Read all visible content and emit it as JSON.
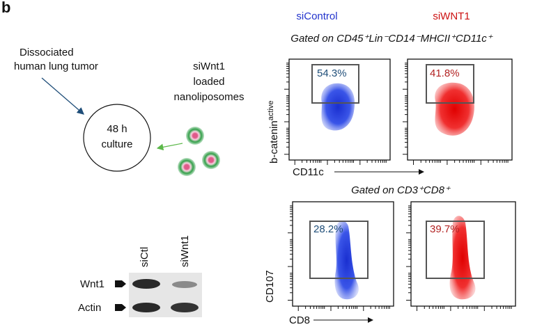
{
  "panel_label": "b",
  "schematic": {
    "source": [
      "Dissociated",
      "human lung tumor"
    ],
    "culture": [
      "48 h",
      "culture"
    ],
    "treatment": [
      "siWnt1",
      "loaded",
      "nanoliposomes"
    ]
  },
  "blot": {
    "lanes": [
      "siCtl",
      "siWnt1"
    ],
    "rows": [
      "Wnt1",
      "Actin"
    ]
  },
  "flow": {
    "conditions": [
      "siControl",
      "siWNT1"
    ],
    "top": {
      "gating": "Gated on CD45⁺Lin⁻CD14⁻MHCII⁺CD11c⁺",
      "y_label": "b-catenin",
      "y_label_sup": "active",
      "x_label": "CD11c",
      "percentages": [
        "54.3%",
        "41.8%"
      ]
    },
    "bottom": {
      "gating": "Gated on CD3⁺CD8⁺",
      "y_label": "CD107",
      "x_label": "CD8",
      "percentages": [
        "28.2%",
        "39.7%"
      ]
    }
  }
}
